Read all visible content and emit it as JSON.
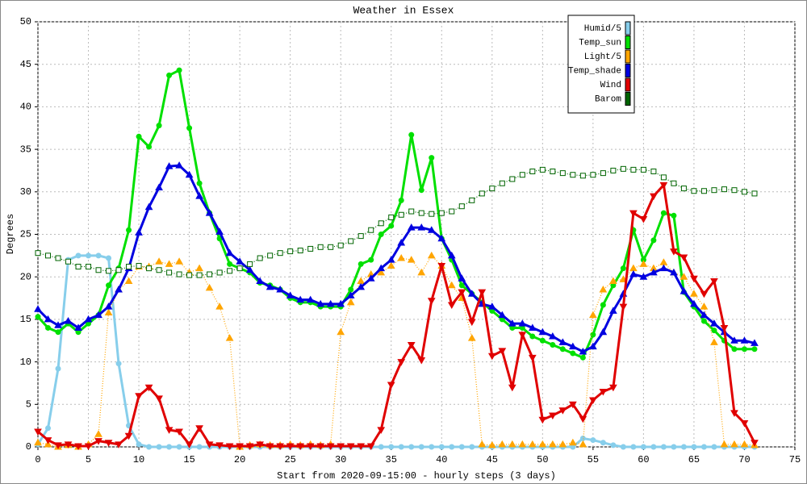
{
  "chart_data": {
    "type": "line",
    "title": "Weather in Essex",
    "x_label": "Start from 2020-09-15:00 - hourly steps (3 days)",
    "y_label": "Degrees",
    "x": [
      0,
      1,
      2,
      3,
      4,
      5,
      6,
      7,
      8,
      9,
      10,
      11,
      12,
      13,
      14,
      15,
      16,
      17,
      18,
      19,
      20,
      21,
      22,
      23,
      24,
      25,
      26,
      27,
      28,
      29,
      30,
      31,
      32,
      33,
      34,
      35,
      36,
      37,
      38,
      39,
      40,
      41,
      42,
      43,
      44,
      45,
      46,
      47,
      48,
      49,
      50,
      51,
      52,
      53,
      54,
      55,
      56,
      57,
      58,
      59,
      60,
      61,
      62,
      63,
      64,
      65,
      66,
      67,
      68,
      69,
      70,
      71
    ],
    "xlim": [
      0,
      75
    ],
    "xticks": [
      0,
      5,
      10,
      15,
      20,
      25,
      30,
      35,
      40,
      45,
      50,
      55,
      60,
      65,
      70,
      75
    ],
    "ylim": [
      0,
      50
    ],
    "yticks": [
      0,
      5,
      10,
      15,
      20,
      25,
      30,
      35,
      40,
      45,
      50
    ],
    "grid": true,
    "legend": "top-right",
    "series": [
      {
        "name": "Humid/5",
        "color": "#87ceeb",
        "style": "solid",
        "marker": "circle",
        "values": [
          0.3,
          2.2,
          9.2,
          22,
          22.5,
          22.5,
          22.5,
          22.2,
          9.8,
          2.5,
          0.3,
          0,
          0,
          0,
          0,
          0,
          0,
          0,
          0,
          0,
          0,
          0,
          0,
          0,
          0,
          0,
          0,
          0,
          0,
          0,
          0,
          0,
          0,
          0,
          0,
          0,
          0,
          0,
          0,
          0,
          0,
          0,
          0,
          0,
          0,
          0,
          0,
          0,
          0,
          0,
          0,
          0,
          0,
          0,
          1,
          0.8,
          0.5,
          0.2,
          0,
          0,
          0,
          0,
          0,
          0,
          0,
          0,
          0,
          0,
          0,
          0,
          0,
          0
        ]
      },
      {
        "name": "Temp_sun",
        "color": "#00e000",
        "style": "solid",
        "marker": "circle",
        "values": [
          15.3,
          14,
          13.5,
          14.5,
          13.5,
          14.5,
          15.5,
          19,
          21,
          25.5,
          36.5,
          35.3,
          37.8,
          43.7,
          44.3,
          37.5,
          31,
          27.5,
          24.5,
          21.5,
          21,
          20.5,
          19.3,
          19,
          18.5,
          17.5,
          17,
          17,
          16.5,
          16.5,
          16.5,
          18.5,
          21.5,
          22,
          25,
          26,
          29,
          36.7,
          30.2,
          34,
          24.5,
          22,
          19,
          18,
          17,
          16,
          15,
          14,
          14,
          13,
          12.5,
          12,
          11.5,
          11,
          10.5,
          13.2,
          16.7,
          19,
          21,
          25.5,
          22,
          24.3,
          27.5,
          27.2,
          18.2,
          16.5,
          14.8,
          13.7,
          12.5,
          11.5,
          11.5,
          11.5
        ]
      },
      {
        "name": "Light/5",
        "color": "#ffa500",
        "style": "dotted",
        "marker": "triangle",
        "values": [
          0.5,
          0.3,
          0,
          0.2,
          0,
          0.3,
          1.5,
          15.8,
          18.5,
          19.5,
          21.2,
          21.2,
          21.8,
          21.5,
          21.8,
          20.5,
          21,
          18.7,
          16.5,
          12.8,
          0,
          0.2,
          0.3,
          0.2,
          0.2,
          0.3,
          0.2,
          0.3,
          0.2,
          0.3,
          13.5,
          17,
          19.5,
          20.3,
          20.5,
          21.3,
          22.2,
          22,
          20.5,
          22.5,
          21.3,
          19,
          17.5,
          12.8,
          0.3,
          0.2,
          0.3,
          0.3,
          0.3,
          0.3,
          0.3,
          0.3,
          0.3,
          0.5,
          0.3,
          15.5,
          18.5,
          19.5,
          19.7,
          21,
          21.5,
          21,
          21.7,
          20.5,
          20,
          18,
          16.5,
          12.3,
          0.3,
          0.3,
          0.3,
          0.2
        ]
      },
      {
        "name": "Temp_shade",
        "color": "#0000e0",
        "style": "solid",
        "marker": "triangle",
        "values": [
          16.2,
          15,
          14.3,
          14.8,
          14,
          15,
          15.5,
          16.5,
          18.5,
          21,
          25.2,
          28.2,
          30.5,
          33,
          33.1,
          32,
          29.5,
          27.5,
          25.3,
          22.8,
          21.8,
          20.8,
          19.5,
          18.8,
          18.5,
          17.8,
          17.3,
          17.3,
          16.8,
          16.8,
          16.8,
          17.8,
          18.8,
          19.8,
          21,
          22,
          24,
          25.8,
          25.8,
          25.5,
          24.5,
          22.5,
          19.8,
          18,
          16.8,
          16.5,
          15.5,
          14.5,
          14.5,
          14,
          13.5,
          13,
          12.3,
          11.8,
          11.2,
          11.8,
          13.5,
          16,
          18,
          20.3,
          20,
          20.5,
          21,
          20.5,
          18.3,
          16.8,
          15.5,
          14.5,
          13.5,
          12.5,
          12.5,
          12.2
        ]
      },
      {
        "name": "Wind",
        "color": "#e00000",
        "style": "solid",
        "marker": "down-triangle",
        "values": [
          1.8,
          0.8,
          0.2,
          0.3,
          0.1,
          0.1,
          0.7,
          0.5,
          0.3,
          1.3,
          6,
          7,
          5.7,
          2,
          1.8,
          0.3,
          2.2,
          0.3,
          0.2,
          0.1,
          0.1,
          0.1,
          0.3,
          0.1,
          0.1,
          0.1,
          0.1,
          0.1,
          0.1,
          0.1,
          0.1,
          0.1,
          0.1,
          0.1,
          2,
          7.3,
          10,
          12,
          10.2,
          17.2,
          21.3,
          16.7,
          18.2,
          14.7,
          18.2,
          10.7,
          11.3,
          7,
          13.2,
          10.5,
          3.2,
          3.7,
          4.3,
          5,
          3.3,
          5.5,
          6.5,
          7,
          16.5,
          27.5,
          26.8,
          29.5,
          30.8,
          23,
          22.3,
          19.8,
          18,
          19.5,
          14,
          4,
          2.8,
          0.5
        ]
      },
      {
        "name": "Barom",
        "color": "#006400",
        "style": "dotted",
        "marker": "square",
        "values": [
          22.8,
          22.5,
          22.2,
          21.8,
          21.2,
          21.2,
          20.8,
          20.7,
          20.8,
          21.2,
          21.3,
          21,
          20.8,
          20.5,
          20.3,
          20.2,
          20.2,
          20.3,
          20.5,
          20.7,
          21,
          21.5,
          22.2,
          22.5,
          22.8,
          23,
          23.1,
          23.3,
          23.5,
          23.5,
          23.7,
          24.2,
          24.8,
          25.5,
          26.3,
          27,
          27.3,
          27.7,
          27.5,
          27.4,
          27.5,
          27.7,
          28.3,
          29,
          29.8,
          30.4,
          31,
          31.5,
          32,
          32.4,
          32.6,
          32.4,
          32.2,
          32,
          31.9,
          32,
          32.2,
          32.5,
          32.7,
          32.6,
          32.6,
          32.4,
          31.7,
          31,
          30.4,
          30.1,
          30.1,
          30.2,
          30.3,
          30.2,
          30,
          29.8
        ]
      }
    ]
  }
}
